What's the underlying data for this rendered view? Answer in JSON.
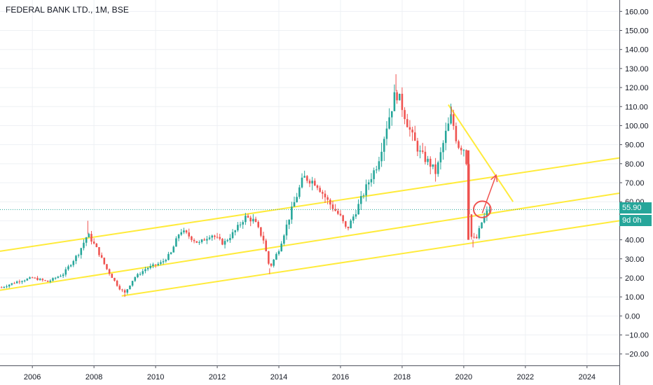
{
  "header": {
    "symbol_title": "FEDERAL BANK LTD., 1M, BSE"
  },
  "price_scale": {
    "last_price": "55.90",
    "countdown": "9d 0h",
    "badge_color": "#26a69a"
  },
  "chart_data": {
    "type": "candlestick",
    "title": "FEDERAL BANK LTD., 1M, BSE",
    "ylim": [
      -26,
      166
    ],
    "xlim": [
      2004.95,
      2025.05
    ],
    "y_ticks": [
      "160.00",
      "150.00",
      "140.00",
      "130.00",
      "120.00",
      "110.00",
      "100.00",
      "90.00",
      "80.00",
      "70.00",
      "60.00",
      "50.00",
      "40.00",
      "30.00",
      "20.00",
      "10.00",
      "0.00",
      "−10.00",
      "−20.00"
    ],
    "y_tick_values": [
      160,
      150,
      140,
      130,
      120,
      110,
      100,
      90,
      80,
      70,
      60,
      50,
      40,
      30,
      20,
      10,
      0,
      -10,
      -20
    ],
    "x_ticks": [
      "2006",
      "2008",
      "2010",
      "2012",
      "2014",
      "2016",
      "2018",
      "2020",
      "2022",
      "2024"
    ],
    "x_tick_values": [
      2006,
      2008,
      2010,
      2012,
      2014,
      2016,
      2018,
      2020,
      2022,
      2024
    ],
    "grid": true,
    "up_color": "#26a69a",
    "down_color": "#ef5350",
    "last_price_value": 55.9,
    "price_path": [
      [
        2005.0,
        15
      ],
      [
        2005.5,
        18
      ],
      [
        2006.0,
        20
      ],
      [
        2006.5,
        18
      ],
      [
        2007.0,
        22
      ],
      [
        2007.5,
        33
      ],
      [
        2007.8,
        43
      ],
      [
        2008.1,
        35
      ],
      [
        2008.4,
        25
      ],
      [
        2008.8,
        15
      ],
      [
        2009.0,
        12
      ],
      [
        2009.3,
        20
      ],
      [
        2009.7,
        25
      ],
      [
        2010.2,
        28
      ],
      [
        2010.5,
        33
      ],
      [
        2010.8,
        45
      ],
      [
        2011.0,
        43
      ],
      [
        2011.4,
        38
      ],
      [
        2011.8,
        43
      ],
      [
        2012.2,
        38
      ],
      [
        2012.6,
        45
      ],
      [
        2012.9,
        52
      ],
      [
        2013.2,
        50
      ],
      [
        2013.5,
        40
      ],
      [
        2013.7,
        25
      ],
      [
        2014.0,
        35
      ],
      [
        2014.4,
        55
      ],
      [
        2014.8,
        73
      ],
      [
        2015.2,
        70
      ],
      [
        2015.6,
        60
      ],
      [
        2016.0,
        52
      ],
      [
        2016.2,
        45
      ],
      [
        2016.5,
        55
      ],
      [
        2016.9,
        70
      ],
      [
        2017.2,
        80
      ],
      [
        2017.5,
        100
      ],
      [
        2017.8,
        118
      ],
      [
        2018.0,
        110
      ],
      [
        2018.3,
        95
      ],
      [
        2018.6,
        85
      ],
      [
        2018.9,
        80
      ],
      [
        2019.1,
        75
      ],
      [
        2019.4,
        95
      ],
      [
        2019.6,
        105
      ],
      [
        2019.8,
        90
      ],
      [
        2020.0,
        88
      ],
      [
        2020.1,
        80
      ],
      [
        2020.2,
        42
      ],
      [
        2020.4,
        40
      ],
      [
        2020.6,
        50
      ],
      [
        2020.8,
        56
      ]
    ],
    "price_wicks": [
      [
        2007.8,
        43,
        50
      ],
      [
        2013.7,
        25,
        22
      ],
      [
        2017.8,
        118,
        127
      ],
      [
        2019.6,
        105,
        110
      ],
      [
        2020.3,
        40,
        36
      ],
      [
        2009.0,
        12,
        10
      ]
    ],
    "trendlines": [
      {
        "color": "#ffeb3b",
        "from": [
          2004.95,
          34
        ],
        "to": [
          2025.05,
          83
        ]
      },
      {
        "color": "#ffeb3b",
        "from": [
          2004.95,
          13.5
        ],
        "to": [
          2025.05,
          64.5
        ]
      },
      {
        "color": "#ffeb3b",
        "from": [
          2008.9,
          10.5
        ],
        "to": [
          2025.05,
          50
        ]
      },
      {
        "color": "#ffeb3b",
        "from": [
          2019.5,
          111
        ],
        "to": [
          2021.6,
          60
        ]
      }
    ],
    "annotations": {
      "drop_arrow": {
        "color": "#ef5350",
        "from": [
          2020.15,
          87
        ],
        "to": [
          2020.15,
          40
        ]
      },
      "target_arrow": {
        "color": "#ef5350",
        "from": [
          2020.6,
          54
        ],
        "to": [
          2021.05,
          74
        ]
      },
      "circle": {
        "color": "#ef5350",
        "center": [
          2020.6,
          56
        ],
        "radius_x": 0.28,
        "radius_y": 4.3
      }
    }
  }
}
